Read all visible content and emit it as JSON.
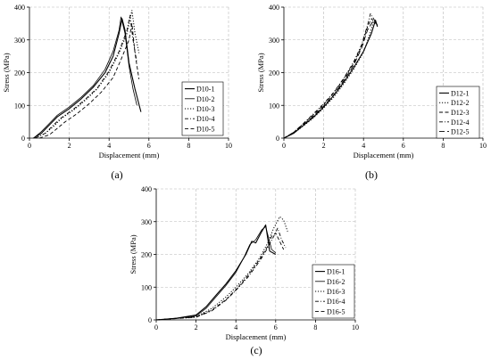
{
  "panel_labels": [
    "(a)",
    "(b)",
    "(c)"
  ],
  "chart_data": [
    {
      "type": "line",
      "panel": "(a)",
      "xlabel": "Displacement (mm)",
      "ylabel": "Stress (MPa)",
      "xlim": [
        0,
        10
      ],
      "ylim": [
        0,
        400
      ],
      "xticks": [
        0,
        2,
        4,
        6,
        8,
        10
      ],
      "yticks": [
        0,
        100,
        200,
        300,
        400
      ],
      "grid": true,
      "legend_position": "right",
      "series": [
        {
          "name": "D10-1",
          "dash": "solid",
          "x": [
            0.2,
            0.6,
            1.0,
            1.4,
            2.0,
            2.6,
            3.2,
            3.8,
            4.2,
            4.5,
            4.65,
            4.8,
            5.0,
            5.3,
            5.6
          ],
          "y": [
            0,
            15,
            40,
            65,
            90,
            120,
            155,
            200,
            250,
            320,
            365,
            330,
            230,
            150,
            80
          ]
        },
        {
          "name": "D10-2",
          "dash": "solid-thin",
          "x": [
            0.2,
            0.6,
            1.0,
            1.4,
            2.0,
            2.6,
            3.2,
            3.8,
            4.2,
            4.5,
            4.6,
            4.8,
            5.0,
            5.2,
            5.4
          ],
          "y": [
            0,
            20,
            45,
            70,
            95,
            125,
            160,
            210,
            265,
            330,
            370,
            320,
            220,
            150,
            100
          ]
        },
        {
          "name": "D10-3",
          "dash": "dotted",
          "x": [
            0.3,
            0.8,
            1.2,
            1.6,
            2.2,
            2.8,
            3.4,
            4.0,
            4.5,
            4.9,
            5.15,
            5.3,
            5.5
          ],
          "y": [
            0,
            15,
            35,
            60,
            85,
            115,
            150,
            200,
            260,
            320,
            390,
            320,
            260
          ]
        },
        {
          "name": "D10-4",
          "dash": "dashdot",
          "x": [
            0.3,
            0.8,
            1.2,
            1.6,
            2.2,
            2.8,
            3.4,
            4.0,
            4.5,
            4.9,
            5.05,
            5.2,
            5.4
          ],
          "y": [
            0,
            15,
            40,
            62,
            88,
            118,
            152,
            205,
            265,
            330,
            375,
            300,
            230
          ]
        },
        {
          "name": "D10-5",
          "dash": "dashed",
          "x": [
            0.5,
            1.0,
            1.4,
            1.8,
            2.4,
            3.0,
            3.6,
            4.2,
            4.6,
            5.0,
            5.15,
            5.3,
            5.5
          ],
          "y": [
            0,
            10,
            30,
            50,
            75,
            105,
            140,
            185,
            240,
            300,
            350,
            260,
            180
          ]
        }
      ]
    },
    {
      "type": "line",
      "panel": "(b)",
      "xlabel": "Displacement (mm)",
      "ylabel": "Stress (MPa)",
      "xlim": [
        0,
        10
      ],
      "ylim": [
        0,
        400
      ],
      "xticks": [
        0,
        2,
        4,
        6,
        8,
        10
      ],
      "yticks": [
        0,
        100,
        200,
        300,
        400
      ],
      "grid": true,
      "legend_position": "right",
      "series": [
        {
          "name": "D12-1",
          "dash": "solid",
          "x": [
            0,
            0.5,
            1.0,
            1.5,
            2.0,
            2.5,
            3.0,
            3.5,
            4.0,
            4.4,
            4.6,
            4.7
          ],
          "y": [
            0,
            15,
            40,
            65,
            95,
            130,
            170,
            215,
            265,
            320,
            360,
            340
          ]
        },
        {
          "name": "D12-2",
          "dash": "dotted",
          "x": [
            0,
            0.5,
            1.0,
            1.5,
            2.0,
            2.5,
            3.0,
            3.5,
            4.0,
            4.3,
            4.5,
            4.7
          ],
          "y": [
            0,
            15,
            38,
            62,
            92,
            125,
            165,
            210,
            262,
            315,
            355,
            345
          ]
        },
        {
          "name": "D12-3",
          "dash": "dashed",
          "x": [
            0,
            0.5,
            1.0,
            1.5,
            2.0,
            2.5,
            3.0,
            3.5,
            3.9,
            4.2,
            4.4,
            4.6
          ],
          "y": [
            0,
            18,
            45,
            72,
            102,
            138,
            180,
            228,
            280,
            340,
            365,
            350
          ]
        },
        {
          "name": "D12-4",
          "dash": "dashdot",
          "x": [
            0,
            0.5,
            1.0,
            1.5,
            2.0,
            2.5,
            3.0,
            3.5,
            3.9,
            4.2,
            4.35,
            4.6
          ],
          "y": [
            0,
            18,
            46,
            75,
            105,
            140,
            182,
            232,
            285,
            345,
            380,
            355
          ]
        },
        {
          "name": "D12-5",
          "dash": "long-dash",
          "x": [
            0,
            0.5,
            1.0,
            1.5,
            2.0,
            2.5,
            3.0,
            3.5,
            3.9,
            4.2,
            4.5,
            4.7
          ],
          "y": [
            0,
            16,
            42,
            68,
            98,
            132,
            175,
            222,
            275,
            330,
            360,
            345
          ]
        }
      ]
    },
    {
      "type": "line",
      "panel": "(c)",
      "xlabel": "Displacement (mm)",
      "ylabel": "Stress (MPa)",
      "xlim": [
        0,
        10
      ],
      "ylim": [
        0,
        400
      ],
      "xticks": [
        0,
        2,
        4,
        6,
        8,
        10
      ],
      "yticks": [
        0,
        100,
        200,
        300,
        400
      ],
      "grid": true,
      "legend_position": "right",
      "series": [
        {
          "name": "D16-1",
          "dash": "solid",
          "x": [
            0,
            1.0,
            2.0,
            2.5,
            3.0,
            3.5,
            4.0,
            4.5,
            4.8,
            5.0,
            5.3,
            5.5,
            5.7,
            6.0
          ],
          "y": [
            0,
            5,
            15,
            40,
            75,
            110,
            150,
            200,
            240,
            235,
            270,
            290,
            210,
            200
          ]
        },
        {
          "name": "D16-2",
          "dash": "solid-thin",
          "x": [
            0,
            1.0,
            2.0,
            2.5,
            3.0,
            3.5,
            4.0,
            4.4,
            4.7,
            5.0,
            5.3,
            5.5,
            5.8,
            6.0
          ],
          "y": [
            0,
            5,
            12,
            35,
            70,
            105,
            145,
            190,
            230,
            245,
            275,
            285,
            215,
            205
          ]
        },
        {
          "name": "D16-3",
          "dash": "dotted",
          "x": [
            0,
            1.0,
            2.0,
            2.8,
            3.5,
            4.0,
            4.6,
            5.2,
            5.6,
            5.9,
            6.2,
            6.4,
            6.6
          ],
          "y": [
            0,
            5,
            10,
            35,
            70,
            100,
            140,
            190,
            235,
            280,
            315,
            305,
            270
          ]
        },
        {
          "name": "D16-4",
          "dash": "dashdot",
          "x": [
            0,
            1.0,
            2.0,
            2.8,
            3.5,
            4.0,
            4.6,
            5.2,
            5.6,
            5.9,
            6.1,
            6.3,
            6.5
          ],
          "y": [
            0,
            4,
            8,
            28,
            60,
            90,
            130,
            180,
            220,
            255,
            280,
            245,
            220
          ]
        },
        {
          "name": "D16-5",
          "dash": "dashed",
          "x": [
            0,
            1.0,
            2.0,
            2.8,
            3.5,
            4.0,
            4.6,
            5.2,
            5.6,
            5.8,
            6.0,
            6.2,
            6.4
          ],
          "y": [
            0,
            4,
            9,
            30,
            62,
            92,
            135,
            185,
            225,
            255,
            265,
            240,
            215
          ]
        }
      ]
    }
  ]
}
